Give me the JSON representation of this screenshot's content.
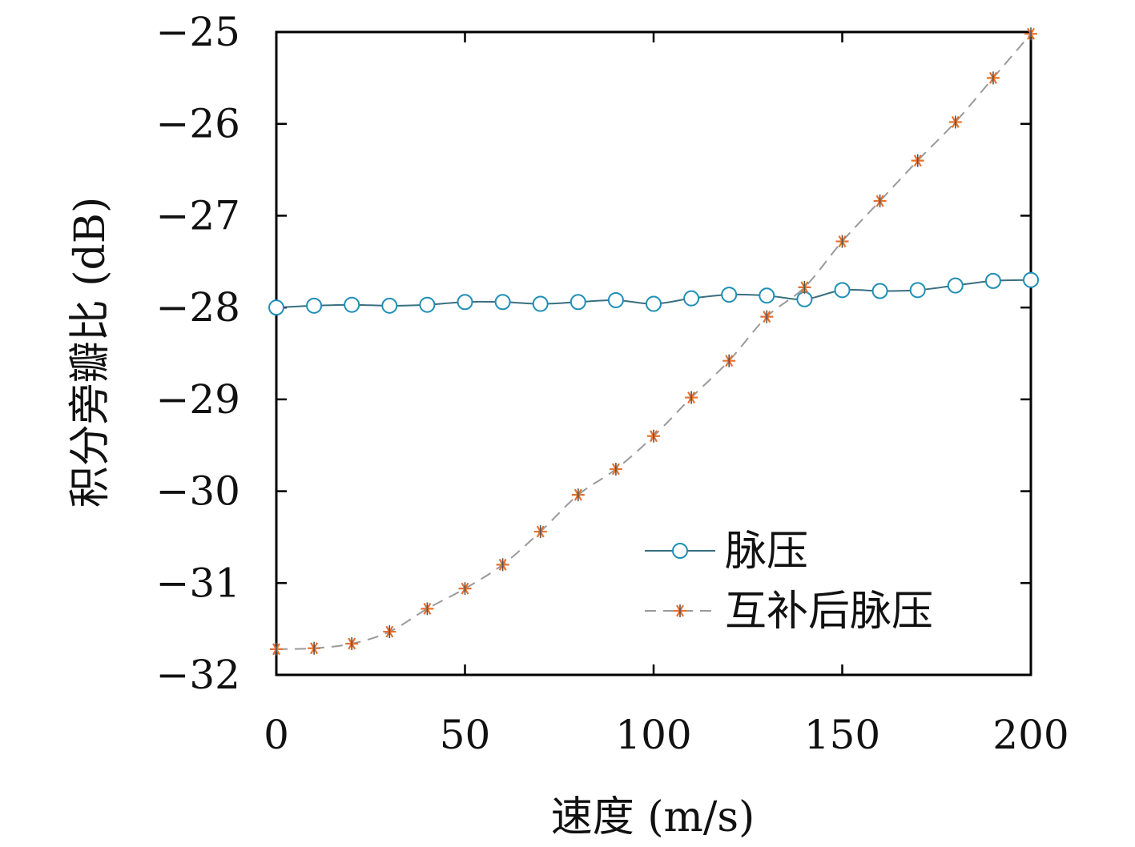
{
  "chart_data": {
    "type": "line",
    "title": "",
    "xlabel": "速度 (m/s)",
    "ylabel": "积分旁瓣比 (dB)",
    "xlim": [
      0,
      200
    ],
    "ylim": [
      -32,
      -25
    ],
    "xticks": [
      0,
      50,
      100,
      150,
      200
    ],
    "xtick_labels": [
      "0",
      "50",
      "100",
      "150",
      "200"
    ],
    "yticks": [
      -25,
      -26,
      -27,
      -28,
      -29,
      -30,
      -31,
      -32
    ],
    "ytick_labels": [
      "−25",
      "−26",
      "−27",
      "−28",
      "−29",
      "−30",
      "−31",
      "−32"
    ],
    "grid": false,
    "legend_position": "bottom-right",
    "x": [
      0,
      10,
      20,
      30,
      40,
      50,
      60,
      70,
      80,
      90,
      100,
      110,
      120,
      130,
      140,
      150,
      160,
      170,
      180,
      190,
      200
    ],
    "series": [
      {
        "name": "脉压",
        "color": "#1f8fb5",
        "line_style": "solid",
        "marker": "circle",
        "values": [
          -28.0,
          -27.98,
          -27.97,
          -27.98,
          -27.97,
          -27.94,
          -27.94,
          -27.96,
          -27.94,
          -27.92,
          -27.96,
          -27.9,
          -27.86,
          -27.87,
          -27.91,
          -27.81,
          -27.82,
          -27.81,
          -27.76,
          -27.71,
          -27.7
        ]
      },
      {
        "name": "互补后脉压",
        "color": "#e6702e",
        "line_style": "dashed",
        "marker": "star",
        "values": [
          -31.72,
          -31.71,
          -31.66,
          -31.53,
          -31.28,
          -31.06,
          -30.8,
          -30.44,
          -30.04,
          -29.76,
          -29.4,
          -28.98,
          -28.58,
          -28.1,
          -27.78,
          -27.28,
          -26.84,
          -26.4,
          -25.98,
          -25.5,
          -25.02
        ]
      }
    ]
  }
}
